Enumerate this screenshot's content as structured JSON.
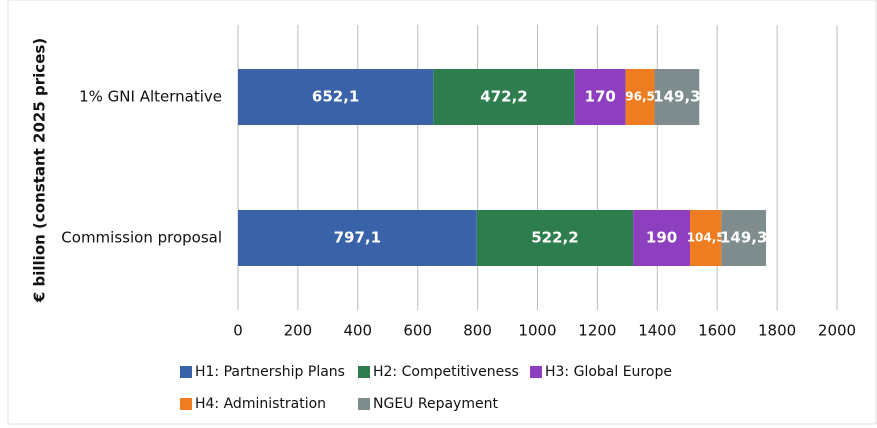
{
  "chart_data": {
    "type": "stacked-barh",
    "y_label": "€ billion (constant 2025 prices)",
    "categories": [
      "1% GNI Alternative",
      "Commission proposal"
    ],
    "series": [
      {
        "name": "H1: Partnership Plans",
        "color": "#3a62a8",
        "values": [
          652.1,
          797.1
        ],
        "value_labels": [
          "652,1",
          "797,1"
        ]
      },
      {
        "name": "H2: Competitiveness",
        "color": "#2e7d4f",
        "values": [
          472.2,
          522.2
        ],
        "value_labels": [
          "472,2",
          "522,2"
        ]
      },
      {
        "name": "H3: Global Europe",
        "color": "#8e3fbf",
        "values": [
          170,
          190
        ]
      },
      {
        "name": "H4: Administration",
        "color": "#ee7d22",
        "values": [
          96.5,
          104.5
        ],
        "value_labels": [
          "96,5",
          "104,5"
        ]
      },
      {
        "name": "NGEU Repayment",
        "color": "#7f8c8d",
        "values": [
          149.3,
          149.3
        ],
        "value_labels": [
          "149,3",
          "149,3"
        ]
      }
    ],
    "xlim": [
      0,
      2000
    ],
    "xticks": [
      0,
      200,
      400,
      600,
      800,
      1000,
      1200,
      1400,
      1600,
      1800,
      2000
    ],
    "grid": true
  }
}
